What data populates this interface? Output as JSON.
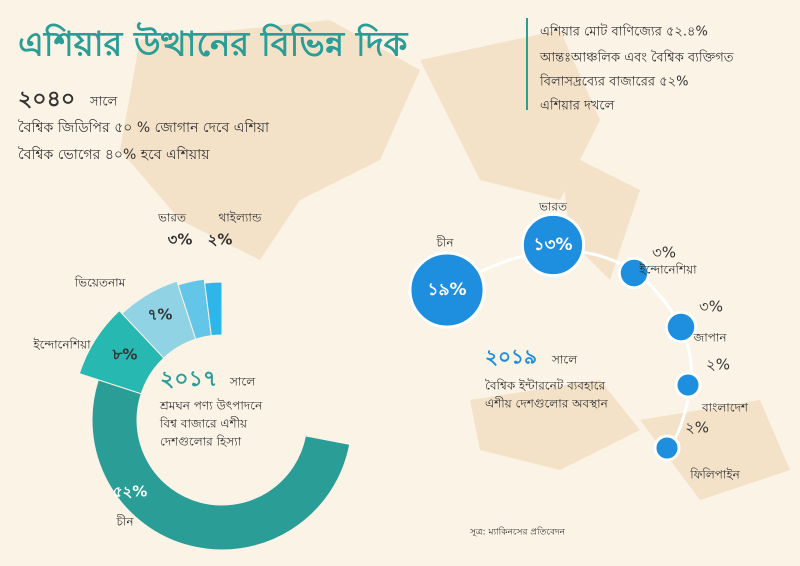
{
  "title": "এশিয়ার উত্থানের বিভিন্ন দিক",
  "left_facts": {
    "year": "২০৪০",
    "suffix": "সালে",
    "lines": [
      "বৈশ্বিক জিডিপির ৫০ % জোগান দেবে এশিয়া",
      "বৈশ্বিক ভোগের ৪০% হবে এশিয়ায়"
    ]
  },
  "right_facts": {
    "lines": [
      "এশিয়ার মোট বাণিজ্যের ৫২.৪%",
      "আন্তঃআঞ্চলিক এবং বৈশ্বিক ব্যক্তিগত",
      "বিলাসদ্রব্যের বাজারের ৫২%",
      "এশিয়ার দখলে"
    ]
  },
  "chart_data": [
    {
      "type": "donut",
      "year": "২০১৭",
      "suffix": "সালে",
      "subtitle": [
        "শ্রমঘন পণ্য উৎপাদনে",
        "বিশ্ব বাজারে এশীয়",
        "দেশগুলোর হিস্যা"
      ],
      "categories": [
        "চীন",
        "ইন্দোনেশিয়া",
        "ভিয়েতনাম",
        "ভারত",
        "থাইল্যান্ড"
      ],
      "values": [
        52,
        8,
        7,
        3,
        2
      ],
      "value_labels": [
        "৫২%",
        "৮%",
        "৭%",
        "৩%",
        "২%"
      ],
      "colors": [
        "#2a9d96",
        "#27b8b2",
        "#8fd3e4",
        "#63c6e8",
        "#2db6ea"
      ]
    },
    {
      "type": "bubble",
      "year": "২০১৯",
      "suffix": "সালে",
      "subtitle": [
        "বৈশ্বিক ইন্টারনেট ব্যবহারে",
        "এশীয় দেশগুলোর অবস্থান"
      ],
      "categories": [
        "চীন",
        "ভারত",
        "ইন্দোনেশিয়া",
        "জাপান",
        "বাংলাদেশ",
        "ফিলিপাইন"
      ],
      "values": [
        19,
        13,
        3,
        3,
        2,
        2
      ],
      "value_labels": [
        "১৯%",
        "১৩%",
        "৩%",
        "৩%",
        "২%",
        "২%"
      ],
      "color": "#1e8fde"
    }
  ],
  "source": "সূত্র: ম্যাকিনসের প্রতিবেদন"
}
